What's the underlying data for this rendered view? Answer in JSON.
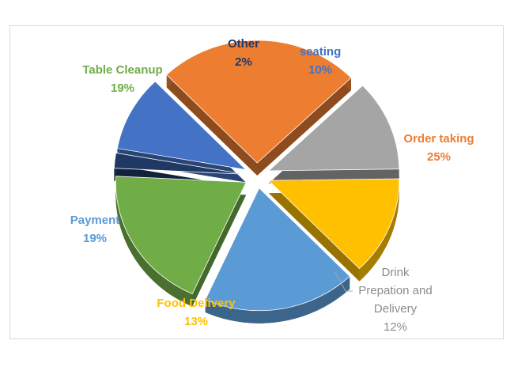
{
  "chart_data": {
    "type": "pie",
    "title": "",
    "slices": [
      {
        "name": "seating",
        "value": 10,
        "label": "10%",
        "color": "#4472C4"
      },
      {
        "name": "Order taking",
        "value": 25,
        "label": "25%",
        "color": "#ED7D31"
      },
      {
        "name": "Drink Prepation and Delivery",
        "value": 12,
        "label": "12%",
        "color": "#A5A5A5"
      },
      {
        "name": "Food Delivery",
        "value": 13,
        "label": "13%",
        "color": "#FFC000"
      },
      {
        "name": "Payment",
        "value": 19,
        "label": "19%",
        "color": "#5B9BD5"
      },
      {
        "name": "Table Cleanup",
        "value": 19,
        "label": "19%",
        "color": "#70AD47"
      },
      {
        "name": "Other",
        "value": 2,
        "label": "2%",
        "color": "#203864"
      }
    ],
    "exploded": true,
    "style": "3d"
  }
}
